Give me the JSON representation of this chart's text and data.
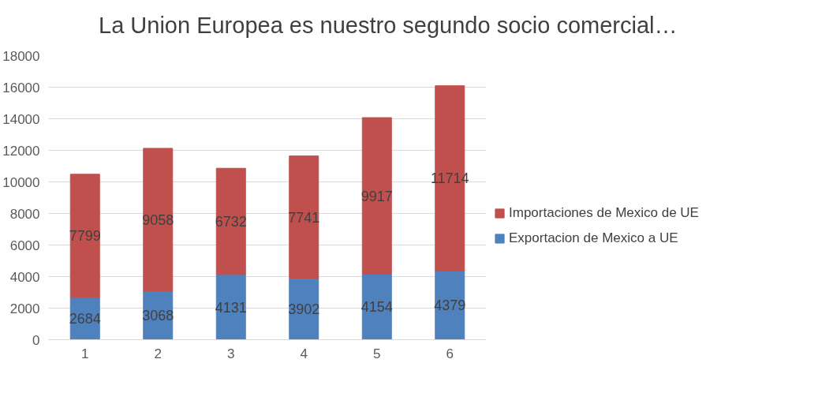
{
  "chart_data": {
    "type": "bar",
    "title": "La Union Europea es nuestro segundo socio comercial…",
    "categories": [
      "1",
      "2",
      "3",
      "4",
      "5",
      "6"
    ],
    "series": [
      {
        "name": "Exportacion de Mexico a UE",
        "color": "#4f81bd",
        "values": [
          2684,
          3068,
          4131,
          3902,
          4154,
          4379
        ]
      },
      {
        "name": "Importaciones de Mexico de UE",
        "color": "#c0504d",
        "values": [
          7799,
          9058,
          6732,
          7741,
          9917,
          11714
        ]
      }
    ],
    "stacked": true,
    "ylim": [
      0,
      18000
    ],
    "yticks": [
      0,
      2000,
      4000,
      6000,
      8000,
      10000,
      12000,
      14000,
      16000,
      18000
    ],
    "grid": "y",
    "legend": "right",
    "data_labels": true
  }
}
